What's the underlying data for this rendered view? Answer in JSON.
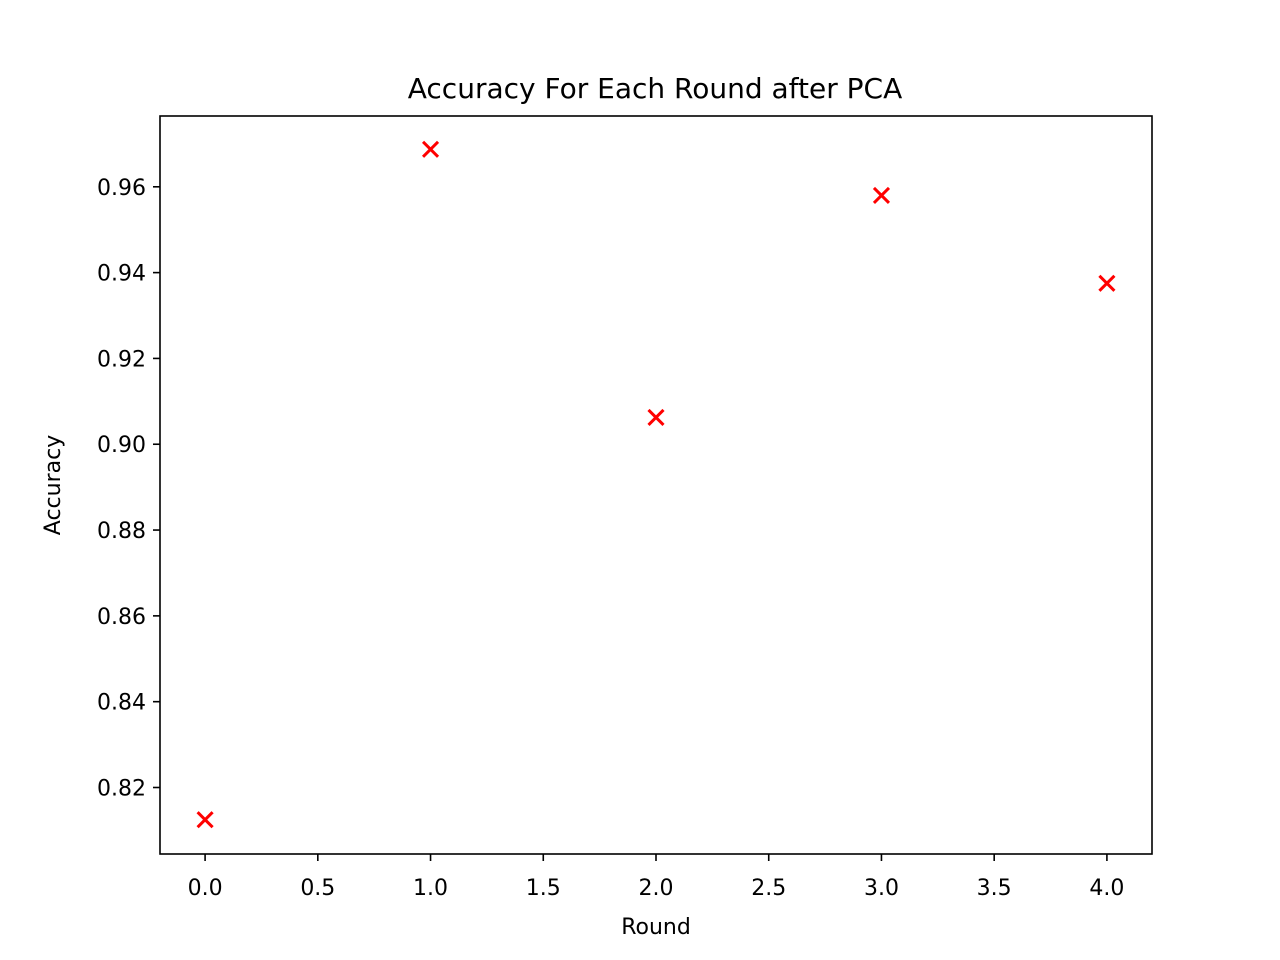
{
  "chart_data": {
    "type": "scatter",
    "title": "Accuracy For Each Round after PCA",
    "xlabel": "Round",
    "ylabel": "Accuracy",
    "xlim": [
      -0.2,
      4.2
    ],
    "ylim": [
      0.8045,
      0.9765
    ],
    "grid": false,
    "marker": "x",
    "marker_color": "#ff0000",
    "x": [
      0,
      1,
      2,
      3,
      4
    ],
    "y": [
      0.8125,
      0.96875,
      0.90625,
      0.958,
      0.9375
    ],
    "x_ticks": [
      0.0,
      0.5,
      1.0,
      1.5,
      2.0,
      2.5,
      3.0,
      3.5,
      4.0
    ],
    "x_tick_labels": [
      "0.0",
      "0.5",
      "1.0",
      "1.5",
      "2.0",
      "2.5",
      "3.0",
      "3.5",
      "4.0"
    ],
    "y_ticks": [
      0.82,
      0.84,
      0.86,
      0.88,
      0.9,
      0.92,
      0.94,
      0.96
    ],
    "y_tick_labels": [
      "0.82",
      "0.84",
      "0.86",
      "0.88",
      "0.90",
      "0.92",
      "0.94",
      "0.96"
    ]
  }
}
